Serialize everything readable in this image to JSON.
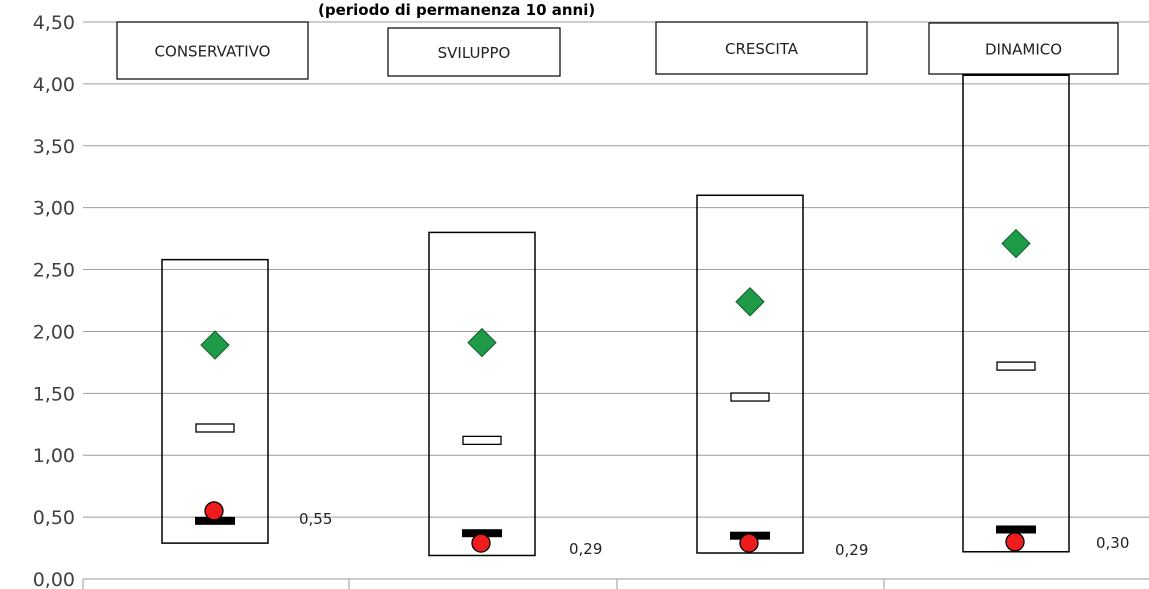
{
  "chart_data": {
    "type": "boxplot",
    "title": "(periodo di permanenza 10 anni)",
    "ylim": [
      0,
      4.5
    ],
    "y_ticks": [
      "0,00",
      "0,50",
      "1,00",
      "1,50",
      "2,00",
      "2,50",
      "3,00",
      "3,50",
      "4,00",
      "4,50"
    ],
    "grid": true,
    "categories": [
      "CONSERVATIVO",
      "SVILUPPO",
      "CRESCITA",
      "DINAMICO"
    ],
    "series": [
      {
        "name": "range_min",
        "values": [
          0.29,
          0.19,
          0.21,
          0.22
        ]
      },
      {
        "name": "range_max",
        "values": [
          2.58,
          2.8,
          3.1,
          4.07
        ]
      },
      {
        "name": "median",
        "values": [
          1.22,
          1.12,
          1.47,
          1.72
        ]
      },
      {
        "name": "high_scenario",
        "values": [
          1.89,
          1.91,
          2.24,
          2.71
        ]
      },
      {
        "name": "low_bar",
        "values": [
          0.47,
          0.37,
          0.35,
          0.4
        ]
      },
      {
        "name": "result",
        "values": [
          0.55,
          0.29,
          0.29,
          0.3
        ]
      }
    ],
    "value_labels": [
      "0,55",
      "0,29",
      "0,29",
      "0,30"
    ],
    "x_axis_cut_text": "",
    "colors": {
      "high_scenario": "#1e9a48",
      "result": "#ee1c1c",
      "grid": "#9e9e9e",
      "box": "#000000",
      "low_bar": "#000000"
    }
  }
}
